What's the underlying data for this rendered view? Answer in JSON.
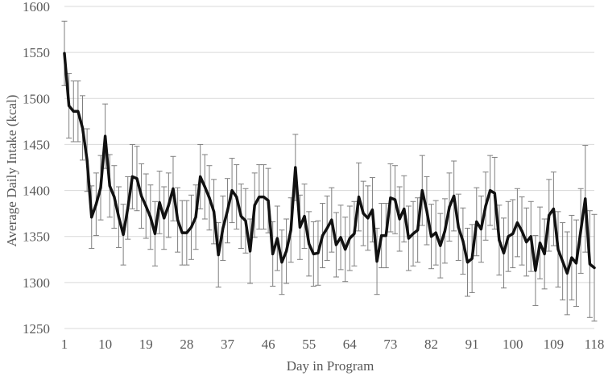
{
  "chart_data": {
    "type": "line",
    "title": "",
    "xlabel": "Day in Program",
    "ylabel": "Average Daily Intake (kcal)",
    "ylim": [
      1250,
      1600
    ],
    "yticks": [
      1250,
      1300,
      1350,
      1400,
      1450,
      1500,
      1550,
      1600
    ],
    "xlim": [
      1,
      118
    ],
    "xticks": [
      1,
      10,
      19,
      28,
      37,
      46,
      55,
      64,
      73,
      82,
      91,
      100,
      109,
      118
    ],
    "grid": true,
    "legend": "none",
    "colors": {
      "line": "#111111",
      "error_bar": "#7f7f7f",
      "grid": "#d9d9d9",
      "text": "#595959"
    },
    "x": [
      1,
      2,
      3,
      4,
      5,
      6,
      7,
      8,
      9,
      10,
      11,
      12,
      13,
      14,
      15,
      16,
      17,
      18,
      19,
      20,
      21,
      22,
      23,
      24,
      25,
      26,
      27,
      28,
      29,
      30,
      31,
      32,
      33,
      34,
      35,
      36,
      37,
      38,
      39,
      40,
      41,
      42,
      43,
      44,
      45,
      46,
      47,
      48,
      49,
      50,
      51,
      52,
      53,
      54,
      55,
      56,
      57,
      58,
      59,
      60,
      61,
      62,
      63,
      64,
      65,
      66,
      67,
      68,
      69,
      70,
      71,
      72,
      73,
      74,
      75,
      76,
      77,
      78,
      79,
      80,
      81,
      82,
      83,
      84,
      85,
      86,
      87,
      88,
      89,
      90,
      91,
      92,
      93,
      94,
      95,
      96,
      97,
      98,
      99,
      100,
      101,
      102,
      103,
      104,
      105,
      106,
      107,
      108,
      109,
      110,
      111,
      112,
      113,
      114,
      115,
      116,
      117,
      118
    ],
    "series": [
      {
        "values": [
          1549,
          1492,
          1486,
          1486,
          1468,
          1433,
          1371,
          1385,
          1403,
          1459,
          1405,
          1393,
          1371,
          1352,
          1381,
          1415,
          1413,
          1394,
          1383,
          1371,
          1353,
          1387,
          1370,
          1384,
          1402,
          1368,
          1354,
          1354,
          1360,
          1371,
          1415,
          1404,
          1392,
          1377,
          1330,
          1359,
          1378,
          1400,
          1393,
          1372,
          1367,
          1334,
          1384,
          1393,
          1393,
          1389,
          1331,
          1348,
          1322,
          1334,
          1357,
          1425,
          1360,
          1372,
          1342,
          1331,
          1332,
          1351,
          1359,
          1368,
          1341,
          1349,
          1336,
          1348,
          1353,
          1393,
          1375,
          1370,
          1379,
          1323,
          1351,
          1351,
          1392,
          1390,
          1369,
          1380,
          1348,
          1353,
          1357,
          1400,
          1378,
          1350,
          1354,
          1340,
          1356,
          1382,
          1394,
          1360,
          1345,
          1322,
          1326,
          1366,
          1358,
          1383,
          1400,
          1397,
          1346,
          1332,
          1350,
          1353,
          1365,
          1356,
          1344,
          1350,
          1313,
          1343,
          1331,
          1373,
          1380,
          1336,
          1323,
          1310,
          1327,
          1321,
          1356,
          1391,
          1320,
          1316
        ],
        "errors": [
          35,
          35,
          33,
          33,
          35,
          34,
          34,
          34,
          35,
          35,
          34,
          34,
          33,
          33,
          34,
          35,
          35,
          35,
          35,
          35,
          35,
          34,
          34,
          35,
          35,
          35,
          35,
          35,
          35,
          35,
          35,
          35,
          35,
          35,
          35,
          35,
          35,
          35,
          35,
          35,
          35,
          35,
          35,
          35,
          35,
          35,
          35,
          35,
          35,
          35,
          35,
          36,
          35,
          35,
          35,
          35,
          35,
          35,
          35,
          35,
          35,
          35,
          35,
          35,
          35,
          37,
          35,
          35,
          35,
          36,
          35,
          35,
          37,
          37,
          35,
          36,
          35,
          35,
          35,
          38,
          37,
          35,
          35,
          35,
          35,
          37,
          38,
          36,
          36,
          37,
          37,
          37,
          36,
          37,
          38,
          39,
          38,
          38,
          38,
          37,
          37,
          37,
          37,
          38,
          38,
          39,
          38,
          39,
          40,
          41,
          42,
          45,
          46,
          47,
          46,
          58,
          58,
          58
        ]
      }
    ]
  }
}
